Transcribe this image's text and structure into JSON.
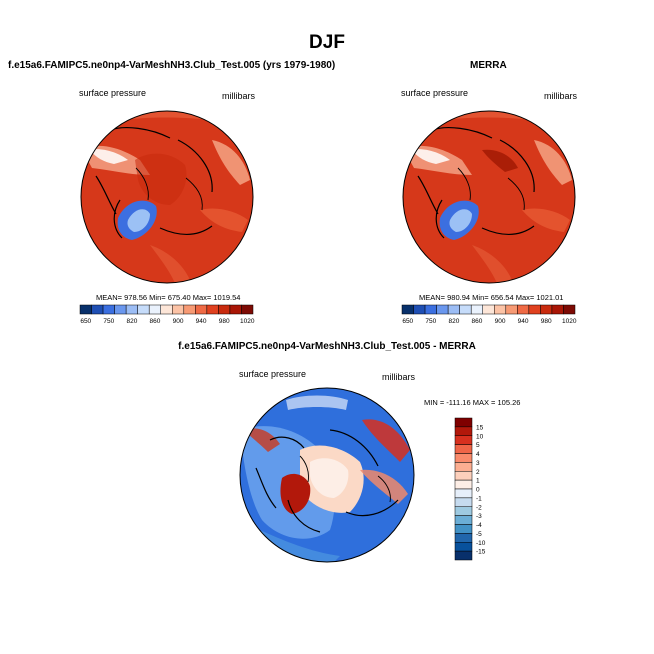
{
  "figure": {
    "title": "DJF"
  },
  "chart_data": [
    {
      "type": "heatmap",
      "title": "f.e15a6.FAMIPC5.ne0np4-VarMeshNH3.Club_Test.005 (yrs 1979-1980)",
      "left_label": "surface pressure",
      "right_label": "millibars",
      "projection": "polar stereographic (north pole)",
      "stats": {
        "text": "MEAN= 978.56  Min= 675.40  Max= 1019.54",
        "mean": 978.56,
        "min": 675.4,
        "max": 1019.54
      },
      "colorbar": {
        "orientation": "horizontal",
        "tick_labels": [
          "650",
          "750",
          "820",
          "860",
          "900",
          "940",
          "980",
          "1020"
        ],
        "colors": [
          "#08306b",
          "#1f4fb4",
          "#3b6fe0",
          "#6a97ee",
          "#9cbdf5",
          "#c6dcfa",
          "#eaf2fd",
          "#fde6d8",
          "#fcc3a6",
          "#f79a74",
          "#ef6a45",
          "#e0411f",
          "#c92b0e",
          "#a91606",
          "#7d0a04"
        ]
      }
    },
    {
      "type": "heatmap",
      "title": "MERRA",
      "left_label": "surface pressure",
      "right_label": "millibars",
      "projection": "polar stereographic (north pole)",
      "stats": {
        "text": "MEAN= 980.94  Min= 656.54  Max= 1021.01",
        "mean": 980.94,
        "min": 656.54,
        "max": 1021.01
      },
      "colorbar": {
        "orientation": "horizontal",
        "tick_labels": [
          "650",
          "750",
          "820",
          "860",
          "900",
          "940",
          "980",
          "1020"
        ],
        "colors": [
          "#08306b",
          "#1f4fb4",
          "#3b6fe0",
          "#6a97ee",
          "#9cbdf5",
          "#c6dcfa",
          "#eaf2fd",
          "#fde6d8",
          "#fcc3a6",
          "#f79a74",
          "#ef6a45",
          "#e0411f",
          "#c92b0e",
          "#a91606",
          "#7d0a04"
        ]
      }
    },
    {
      "type": "heatmap",
      "title": "f.e15a6.FAMIPC5.ne0np4-VarMeshNH3.Club_Test.005 - MERRA",
      "left_label": "surface pressure",
      "right_label": "millibars",
      "projection": "polar stereographic (north pole)",
      "stats": {
        "text": "MIN = -111.16 MAX = 105.26",
        "min": -111.16,
        "max": 105.26
      },
      "colorbar": {
        "orientation": "vertical",
        "tick_labels": [
          "15",
          "10",
          "5",
          "4",
          "3",
          "2",
          "1",
          "0",
          "-1",
          "-2",
          "-3",
          "-4",
          "-5",
          "-10",
          "-15"
        ],
        "colors": [
          "#7f0000",
          "#b2180b",
          "#d7301f",
          "#ef6548",
          "#f98a6b",
          "#fcae91",
          "#fdd0bc",
          "#fdeee6",
          "#e6effa",
          "#c6dbef",
          "#9ecae1",
          "#6baed6",
          "#4292c6",
          "#2166ac",
          "#08519c",
          "#08306b"
        ]
      }
    }
  ]
}
